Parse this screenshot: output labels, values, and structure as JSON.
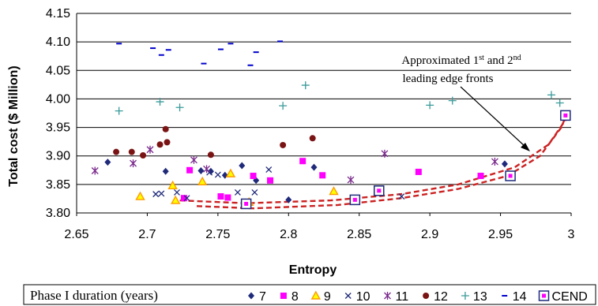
{
  "chart_data": {
    "type": "scatter",
    "title": "",
    "xlabel": "Entropy",
    "ylabel": "Total cost ($ Million)",
    "xlim": [
      2.65,
      3.0
    ],
    "ylim": [
      3.8,
      4.15
    ],
    "xticks": [
      "2.65",
      "2.7",
      "2.75",
      "2.8",
      "2.85",
      "2.9",
      "2.95",
      "3"
    ],
    "yticks": [
      "3.80",
      "3.85",
      "3.90",
      "3.95",
      "4.00",
      "4.05",
      "4.10",
      "4.15"
    ],
    "grid": "horizontal",
    "legend_title": "Phase I duration (years)",
    "legend_position": "bottom",
    "annotation": {
      "line1_pre": "Approximated 1",
      "line1_sup1": "st",
      "line1_mid": " and 2",
      "line1_sup2": "nd",
      "line2": "leading edge fronts"
    },
    "series": [
      {
        "name": "7",
        "marker": "diamond",
        "color": "#1f2a7a",
        "points": [
          [
            2.672,
            3.889
          ],
          [
            2.713,
            3.873
          ],
          [
            2.738,
            3.874
          ],
          [
            2.745,
            3.873
          ],
          [
            2.755,
            3.866
          ],
          [
            2.767,
            3.883
          ],
          [
            2.777,
            3.857
          ],
          [
            2.8,
            3.823
          ],
          [
            2.818,
            3.88
          ],
          [
            2.953,
            3.886
          ]
        ]
      },
      {
        "name": "8",
        "marker": "square",
        "color": "#ff00ff",
        "points": [
          [
            2.726,
            3.826
          ],
          [
            2.73,
            3.875
          ],
          [
            2.752,
            3.829
          ],
          [
            2.757,
            3.827
          ],
          [
            2.775,
            3.865
          ],
          [
            2.787,
            3.857
          ],
          [
            2.81,
            3.891
          ],
          [
            2.824,
            3.866
          ],
          [
            2.892,
            3.872
          ],
          [
            2.936,
            3.865
          ]
        ]
      },
      {
        "name": "9",
        "marker": "triangle",
        "color": "#ff9900",
        "points": [
          [
            2.695,
            3.829
          ],
          [
            2.718,
            3.848
          ],
          [
            2.72,
            3.822
          ],
          [
            2.739,
            3.855
          ],
          [
            2.759,
            3.869
          ],
          [
            2.772,
            3.819
          ],
          [
            2.832,
            3.838
          ]
        ]
      },
      {
        "name": "10",
        "marker": "x",
        "color": "#1f2a7a",
        "points": [
          [
            2.706,
            3.833
          ],
          [
            2.71,
            3.834
          ],
          [
            2.721,
            3.836
          ],
          [
            2.728,
            3.826
          ],
          [
            2.744,
            3.871
          ],
          [
            2.75,
            3.867
          ],
          [
            2.764,
            3.836
          ],
          [
            2.776,
            3.836
          ],
          [
            2.786,
            3.876
          ],
          [
            2.865,
            3.836
          ],
          [
            2.88,
            3.829
          ]
        ]
      },
      {
        "name": "11",
        "marker": "star",
        "color": "#7a2a8c",
        "points": [
          [
            2.663,
            3.874
          ],
          [
            2.69,
            3.887
          ],
          [
            2.702,
            3.911
          ],
          [
            2.733,
            3.893
          ],
          [
            2.742,
            3.877
          ],
          [
            2.844,
            3.858
          ],
          [
            2.868,
            3.904
          ],
          [
            2.946,
            3.89
          ]
        ]
      },
      {
        "name": "12",
        "marker": "circle",
        "color": "#7a1414",
        "points": [
          [
            2.678,
            3.907
          ],
          [
            2.689,
            3.907
          ],
          [
            2.697,
            3.901
          ],
          [
            2.709,
            3.92
          ],
          [
            2.713,
            3.947
          ],
          [
            2.714,
            3.924
          ],
          [
            2.745,
            3.902
          ],
          [
            2.796,
            3.919
          ],
          [
            2.817,
            3.931
          ]
        ]
      },
      {
        "name": "13",
        "marker": "plus",
        "color": "#3a9a9a",
        "points": [
          [
            2.68,
            3.979
          ],
          [
            2.709,
            3.995
          ],
          [
            2.723,
            3.985
          ],
          [
            2.796,
            3.988
          ],
          [
            2.812,
            4.024
          ],
          [
            2.9,
            3.989
          ],
          [
            2.916,
            3.997
          ],
          [
            2.986,
            4.007
          ],
          [
            2.992,
            3.993
          ]
        ]
      },
      {
        "name": "14",
        "marker": "dash",
        "color": "#0000cc",
        "points": [
          [
            2.68,
            4.097
          ],
          [
            2.704,
            4.089
          ],
          [
            2.71,
            4.077
          ],
          [
            2.715,
            4.086
          ],
          [
            2.74,
            4.062
          ],
          [
            2.752,
            4.087
          ],
          [
            2.759,
            4.097
          ],
          [
            2.773,
            4.059
          ],
          [
            2.777,
            4.082
          ],
          [
            2.794,
            4.101
          ]
        ]
      },
      {
        "name": "CEND",
        "marker": "boxed-square",
        "color": "#1f2a7a",
        "points": [
          [
            2.77,
            3.816
          ],
          [
            2.847,
            3.823
          ],
          [
            2.864,
            3.839
          ],
          [
            2.957,
            3.865
          ],
          [
            2.996,
            3.971
          ]
        ]
      }
    ],
    "leading_edge_fronts": [
      [
        [
          2.723,
          3.822
        ],
        [
          2.77,
          3.817
        ],
        [
          2.83,
          3.822
        ],
        [
          2.88,
          3.833
        ],
        [
          2.92,
          3.85
        ],
        [
          2.96,
          3.88
        ],
        [
          2.984,
          3.92
        ],
        [
          2.998,
          3.97
        ]
      ],
      [
        [
          2.735,
          3.812
        ],
        [
          2.775,
          3.808
        ],
        [
          2.835,
          3.814
        ],
        [
          2.88,
          3.826
        ],
        [
          2.92,
          3.842
        ],
        [
          2.955,
          3.865
        ],
        [
          2.978,
          3.9
        ],
        [
          2.993,
          3.95
        ],
        [
          2.998,
          3.98
        ]
      ]
    ],
    "colors": {
      "front": "#cc2222",
      "arrow": "#000000",
      "grid": "#000000"
    }
  }
}
